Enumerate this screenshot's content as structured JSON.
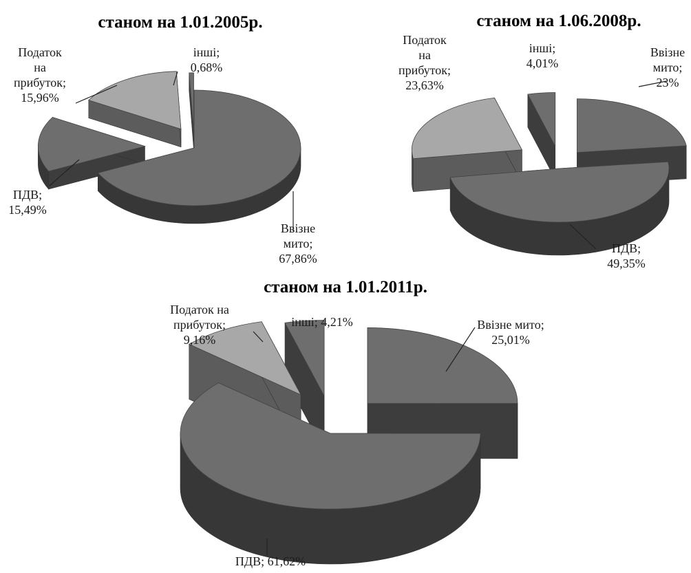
{
  "chart_data": [
    {
      "type": "pie",
      "title": "станом на  1.01.2005р.",
      "categories": [
        "Ввізне мито",
        "ПДВ",
        "Податок на прибуток",
        "інші"
      ],
      "values": [
        67.86,
        15.49,
        15.96,
        0.68
      ],
      "labels": [
        [
          "Ввізне",
          "мито;",
          "67,86%"
        ],
        [
          "ПДВ;",
          "15,49%"
        ],
        [
          "Податок",
          "на",
          "прибуток;",
          "15,96%"
        ],
        [
          "інші;",
          "0,68%"
        ]
      ],
      "colors": [
        "#6e6e6e",
        "#6e6e6e",
        "#a8a8a8",
        "#6e6e6e"
      ]
    },
    {
      "type": "pie",
      "title": "станом на 1.06.2008р.",
      "categories": [
        "Ввізне мито",
        "ПДВ",
        "Податок на прибуток",
        "інші"
      ],
      "values": [
        23,
        49.35,
        23.63,
        4.01
      ],
      "labels": [
        [
          "Ввізне",
          "мито;",
          "23%"
        ],
        [
          "ПДВ;",
          "49,35%"
        ],
        [
          "Податок",
          "на",
          "прибуток;",
          "23,63%"
        ],
        [
          "інші;",
          "4,01%"
        ]
      ],
      "colors": [
        "#6e6e6e",
        "#6e6e6e",
        "#a8a8a8",
        "#6e6e6e"
      ]
    },
    {
      "type": "pie",
      "title": "станом на 1.01.2011р.",
      "categories": [
        "Ввізне мито",
        "ПДВ",
        "Податок на прибуток",
        "інші"
      ],
      "values": [
        25.01,
        61.62,
        9.16,
        4.21
      ],
      "labels": [
        [
          "Ввізне мито;",
          "25,01%"
        ],
        [
          "ПДВ; 61,62%"
        ],
        [
          "Податок на",
          "прибуток;",
          "9,16%"
        ],
        [
          "інші; 4,21%"
        ]
      ],
      "colors": [
        "#6e6e6e",
        "#6e6e6e",
        "#a8a8a8",
        "#6e6e6e"
      ]
    }
  ]
}
